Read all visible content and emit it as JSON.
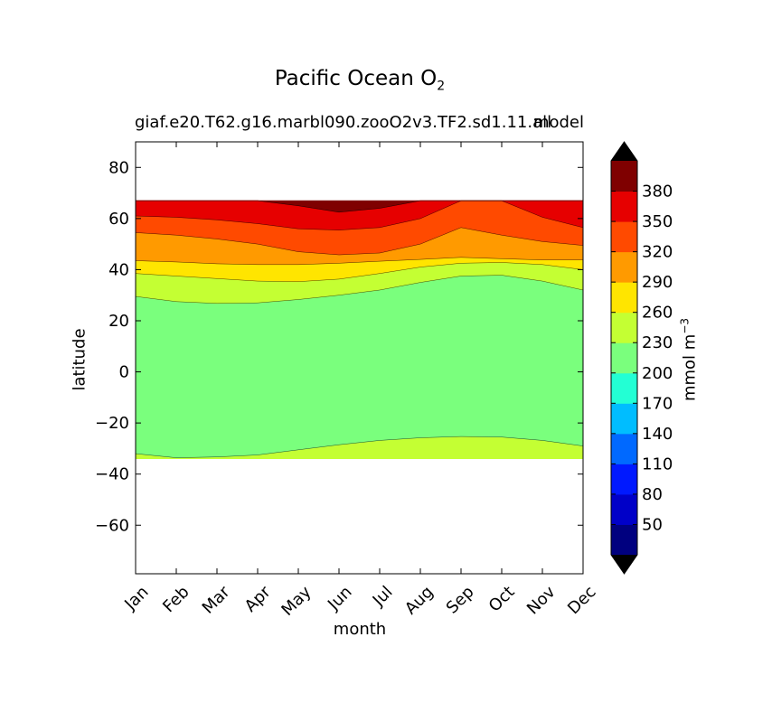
{
  "chart_data": {
    "type": "heatmap",
    "title": "Pacific Ocean O",
    "title_subscript": "2",
    "subtitle_left": "giaf.e20.T62.g16.marbl090.zooO2v3.TF2.sd1.11.all",
    "subtitle_right": "model",
    "xlabel": "month",
    "ylabel": "latitude",
    "colorbar_label": "mmol m",
    "colorbar_label_sup": "−3",
    "x_ticks": [
      "Jan",
      "Feb",
      "Mar",
      "Apr",
      "May",
      "Jun",
      "Jul",
      "Aug",
      "Sep",
      "Oct",
      "Nov",
      "Dec"
    ],
    "y_ticks": [
      80,
      60,
      40,
      20,
      0,
      -20,
      -40,
      -60
    ],
    "ylim": [
      -79,
      90
    ],
    "data_lat_range": [
      -34,
      67
    ],
    "levels": [
      20,
      50,
      80,
      110,
      140,
      170,
      200,
      230,
      260,
      290,
      320,
      350,
      380,
      410
    ],
    "level_colors": [
      "#00007f",
      "#0000c8",
      "#0019ff",
      "#0069ff",
      "#00bdff",
      "#23ffd4",
      "#7aff7d",
      "#c4ff33",
      "#ffe500",
      "#ff9a00",
      "#ff4a00",
      "#e60000",
      "#7f0000"
    ],
    "colorbar_tick_labels": [
      "50",
      "80",
      "110",
      "140",
      "170",
      "200",
      "230",
      "260",
      "290",
      "320",
      "350",
      "380"
    ],
    "contour_boundaries": [
      {
        "name": "S 200-230/230-260",
        "lat": [
          -32.0,
          -33.6,
          -33.3,
          -32.5,
          -30.5,
          -28.5,
          -26.8,
          -25.8,
          -25.3,
          -25.5,
          -26.8,
          -29.0
        ]
      },
      {
        "name": "N 200-230/230-260",
        "lat": [
          29.5,
          27.5,
          26.8,
          27.0,
          28.3,
          30.0,
          32.0,
          35.0,
          37.5,
          37.8,
          35.5,
          32.0
        ]
      },
      {
        "name": "230-260/260-290",
        "lat": [
          38.5,
          37.5,
          36.5,
          35.5,
          35.3,
          36.3,
          38.5,
          41.0,
          42.5,
          42.8,
          42.0,
          40.0
        ]
      },
      {
        "name": "260-290/290-320",
        "lat": [
          43.5,
          43.0,
          42.3,
          42.0,
          42.0,
          42.5,
          43.3,
          44.0,
          44.8,
          44.3,
          43.8,
          43.8
        ]
      },
      {
        "name": "290-320/320-350",
        "lat": [
          54.5,
          53.5,
          52.0,
          50.0,
          47.0,
          45.8,
          46.5,
          50.0,
          56.5,
          53.5,
          51.0,
          49.5
        ]
      },
      {
        "name": "320-350/350-380",
        "lat": [
          61.0,
          60.5,
          59.5,
          58.0,
          56.0,
          55.5,
          56.5,
          60.0,
          67.0,
          67.0,
          60.5,
          56.5
        ]
      },
      {
        "name": "350-380/380-410",
        "lat": [
          67.0,
          67.0,
          67.0,
          67.0,
          65.0,
          62.5,
          64.0,
          67.0,
          67.0,
          67.0,
          67.0,
          67.0
        ]
      }
    ]
  }
}
